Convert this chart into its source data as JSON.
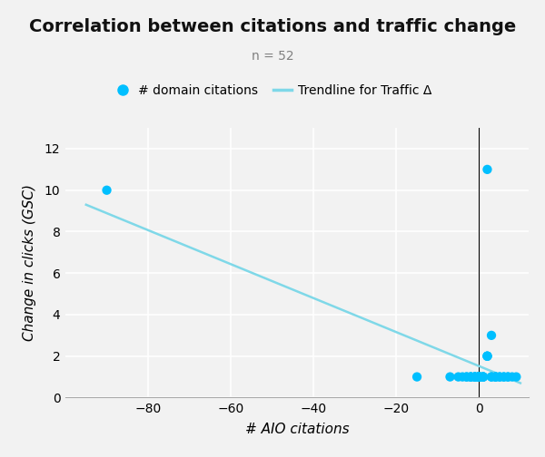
{
  "title": "Correlation between citations and traffic change",
  "subtitle": "n = 52",
  "xlabel": "# AIO citations",
  "ylabel": "Change in clicks (GSC)",
  "legend_scatter": "# domain citations",
  "legend_line": "Trendline for Traffic Δ",
  "scatter_color": "#00BFFF",
  "trendline_color": "#7FD8E8",
  "background_color": "#f2f2f2",
  "xlim": [
    -100,
    12
  ],
  "ylim": [
    0,
    13
  ],
  "xticks": [
    -80,
    -60,
    -40,
    -20,
    0
  ],
  "yticks": [
    0,
    2,
    4,
    6,
    8,
    10,
    12
  ],
  "vline_x": 0,
  "scatter_x": [
    -90,
    2,
    -15,
    -7,
    -5,
    -4,
    -3,
    -3,
    -2,
    -2,
    -2,
    -1,
    -1,
    -1,
    -1,
    0,
    0,
    0,
    0,
    0,
    0,
    0,
    0,
    0,
    0,
    0,
    0,
    0,
    0,
    0,
    0,
    1,
    1,
    1,
    1,
    2,
    2,
    2,
    3,
    3,
    3,
    4,
    4,
    4,
    5,
    5,
    6,
    6,
    7,
    7,
    8,
    9
  ],
  "scatter_y": [
    10,
    11,
    1,
    1,
    1,
    1,
    1,
    1,
    1,
    1,
    1,
    1,
    1,
    1,
    1,
    1,
    1,
    1,
    1,
    1,
    1,
    1,
    1,
    1,
    1,
    1,
    1,
    1,
    1,
    1,
    1,
    1,
    1,
    1,
    1,
    2,
    2,
    2,
    3,
    1,
    1,
    1,
    1,
    1,
    1,
    1,
    1,
    1,
    1,
    1,
    1,
    1
  ],
  "trendline_x": [
    -95,
    10
  ],
  "trendline_y": [
    9.3,
    0.7
  ],
  "title_fontsize": 14,
  "subtitle_fontsize": 10,
  "label_fontsize": 11,
  "tick_fontsize": 10,
  "legend_fontsize": 10,
  "scatter_size": 55,
  "line_width": 1.8
}
